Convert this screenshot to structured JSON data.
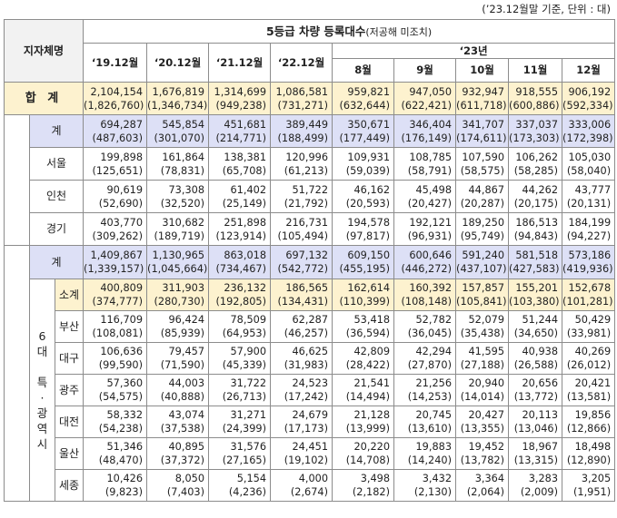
{
  "note": "(’23.12월말 기준, 단위 : 대)",
  "header": {
    "region_label": "지자체명",
    "title": "5등급 차량 등록대수",
    "title_note": "(저공해 미조치)",
    "year_group": "‘23년",
    "columns": [
      "‘19.12월",
      "‘20.12월",
      "‘21.12월",
      "‘22.12월",
      "8월",
      "9월",
      "10월",
      "11월",
      "12월"
    ]
  },
  "rows": {
    "total": {
      "label": "합 계",
      "values": [
        "2,104,154",
        "1,676,819",
        "1,314,699",
        "1,086,581",
        "959,821",
        "947,050",
        "932,947",
        "918,555",
        "906,192"
      ],
      "sub": [
        "(1,826,760)",
        "(1,346,734)",
        "(949,238)",
        "(731,271)",
        "(632,644)",
        "(622,421)",
        "(611,718)",
        "(600,886)",
        "(592,334)"
      ]
    },
    "metro_sum": {
      "label": "계",
      "values": [
        "694,287",
        "545,854",
        "451,681",
        "389,449",
        "350,671",
        "346,404",
        "341,707",
        "337,037",
        "333,006"
      ],
      "sub": [
        "(487,603)",
        "(301,070)",
        "(214,771)",
        "(188,499)",
        "(177,449)",
        "(176,149)",
        "(174,611)",
        "(173,303)",
        "(172,398)"
      ]
    },
    "seoul": {
      "label": "서울",
      "values": [
        "199,898",
        "161,864",
        "138,381",
        "120,996",
        "109,931",
        "108,785",
        "107,590",
        "106,262",
        "105,030"
      ],
      "sub": [
        "(125,651)",
        "(78,831)",
        "(65,708)",
        "(61,213)",
        "(59,039)",
        "(58,791)",
        "(58,575)",
        "(58,285)",
        "(58,040)"
      ]
    },
    "incheon": {
      "label": "인천",
      "values": [
        "90,619",
        "73,308",
        "61,402",
        "51,722",
        "46,162",
        "45,498",
        "44,867",
        "44,262",
        "43,777"
      ],
      "sub": [
        "(52,690)",
        "(32,520)",
        "(25,149)",
        "(21,792)",
        "(20,593)",
        "(20,427)",
        "(20,287)",
        "(20,175)",
        "(20,131)"
      ]
    },
    "gyeonggi": {
      "label": "경기",
      "values": [
        "403,770",
        "310,682",
        "251,898",
        "216,731",
        "194,578",
        "192,121",
        "189,250",
        "186,513",
        "184,199"
      ],
      "sub": [
        "(309,262)",
        "(189,719)",
        "(123,914)",
        "(105,494)",
        "(97,817)",
        "(96,931)",
        "(95,749)",
        "(94,843)",
        "(94,227)"
      ]
    },
    "nonmetro_sum": {
      "label": "계",
      "values": [
        "1,409,867",
        "1,130,965",
        "863,018",
        "697,132",
        "609,150",
        "600,646",
        "591,240",
        "581,518",
        "573,186"
      ],
      "sub": [
        "(1,339,157)",
        "(1,045,664)",
        "(734,467)",
        "(542,772)",
        "(455,195)",
        "(446,272)",
        "(437,107)",
        "(427,583)",
        "(419,936)"
      ]
    },
    "six_cities_label": [
      "6",
      "대",
      "",
      "특",
      "·",
      "광",
      "역",
      "시"
    ],
    "six_sum": {
      "label": "소계",
      "values": [
        "400,809",
        "311,903",
        "236,132",
        "186,565",
        "162,614",
        "160,392",
        "157,857",
        "155,201",
        "152,678"
      ],
      "sub": [
        "(374,777)",
        "(280,730)",
        "(192,805)",
        "(134,431)",
        "(110,399)",
        "(108,148)",
        "(105,841)",
        "(103,380)",
        "(101,281)"
      ]
    },
    "busan": {
      "label": "부산",
      "values": [
        "116,709",
        "96,424",
        "78,509",
        "62,287",
        "53,418",
        "52,782",
        "52,079",
        "51,244",
        "50,429"
      ],
      "sub": [
        "(108,081)",
        "(85,939)",
        "(64,953)",
        "(46,257)",
        "(36,594)",
        "(36,045)",
        "(35,438)",
        "(34,650)",
        "(33,981)"
      ]
    },
    "daegu": {
      "label": "대구",
      "values": [
        "106,636",
        "79,457",
        "57,900",
        "46,625",
        "42,809",
        "42,294",
        "41,595",
        "40,938",
        "40,269"
      ],
      "sub": [
        "(99,590)",
        "(71,590)",
        "(45,339)",
        "(31,983)",
        "(28,422)",
        "(27,870)",
        "(27,188)",
        "(26,588)",
        "(26,012)"
      ]
    },
    "gwangju": {
      "label": "광주",
      "values": [
        "57,360",
        "44,003",
        "31,722",
        "24,523",
        "21,541",
        "21,256",
        "20,940",
        "20,656",
        "20,421"
      ],
      "sub": [
        "(54,575)",
        "(40,888)",
        "(26,713)",
        "(17,242)",
        "(14,494)",
        "(14,253)",
        "(14,014)",
        "(13,772)",
        "(13,581)"
      ]
    },
    "daejeon": {
      "label": "대전",
      "values": [
        "58,332",
        "43,074",
        "31,271",
        "24,679",
        "21,128",
        "20,745",
        "20,427",
        "20,113",
        "19,856"
      ],
      "sub": [
        "(54,238)",
        "(37,538)",
        "(24,399)",
        "(17,173)",
        "(13,999)",
        "(13,610)",
        "(13,355)",
        "(13,046)",
        "(12,866)"
      ]
    },
    "ulsan": {
      "label": "울산",
      "values": [
        "51,346",
        "40,895",
        "31,576",
        "24,451",
        "20,220",
        "19,883",
        "19,452",
        "18,967",
        "18,498"
      ],
      "sub": [
        "(48,470)",
        "(37,372)",
        "(27,165)",
        "(19,102)",
        "(14,708)",
        "(14,240)",
        "(13,782)",
        "(13,315)",
        "(12,890)"
      ]
    },
    "sejong": {
      "label": "세종",
      "values": [
        "10,426",
        "8,050",
        "5,154",
        "4,000",
        "3,498",
        "3,432",
        "3,364",
        "3,283",
        "3,205"
      ],
      "sub": [
        "(9,823)",
        "(7,403)",
        "(4,236)",
        "(2,674)",
        "(2,182)",
        "(2,130)",
        "(2,064)",
        "(2,009)",
        "(1,951)"
      ]
    }
  }
}
